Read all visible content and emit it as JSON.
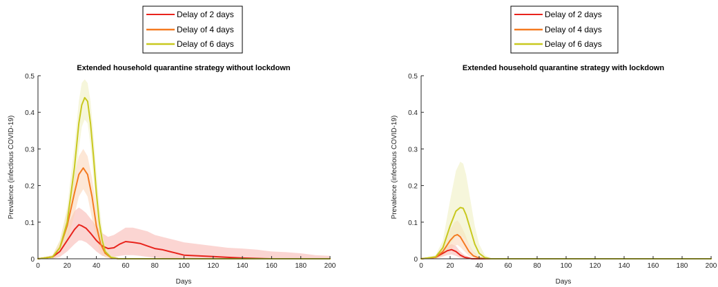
{
  "chart_data": [
    {
      "type": "line",
      "title": "Extended household quarantine strategy without lockdown",
      "xlabel": "Days",
      "ylabel": "Prevalence (infectious COVID-19)",
      "xlim": [
        0,
        200
      ],
      "ylim": [
        0,
        0.5
      ],
      "xticks": [
        "0",
        "20",
        "40",
        "60",
        "80",
        "100",
        "120",
        "140",
        "160",
        "180",
        "200"
      ],
      "yticks": [
        "0",
        "0.1",
        "0.2",
        "0.3",
        "0.4",
        "0.5"
      ],
      "grid": false,
      "legend": {
        "placement": "above-plot",
        "entries": [
          "Delay of 2 days",
          "Delay of 4 days",
          "Delay of 6 days"
        ]
      },
      "series": [
        {
          "name": "Delay of 2 days",
          "color": "#e8231c",
          "band_color": "#f7b3ad",
          "x": [
            0,
            10,
            15,
            20,
            25,
            28,
            30,
            33,
            36,
            40,
            44,
            48,
            52,
            56,
            60,
            65,
            70,
            75,
            80,
            85,
            90,
            95,
            100,
            110,
            120,
            130,
            140,
            150,
            160,
            170,
            180,
            190,
            200
          ],
          "y": [
            0,
            0.005,
            0.02,
            0.05,
            0.08,
            0.093,
            0.09,
            0.083,
            0.07,
            0.05,
            0.035,
            0.028,
            0.03,
            0.04,
            0.047,
            0.045,
            0.042,
            0.035,
            0.028,
            0.025,
            0.02,
            0.015,
            0.01,
            0.008,
            0.006,
            0.004,
            0.002,
            0.001,
            0,
            0,
            0,
            0,
            0
          ],
          "upper": [
            0,
            0.01,
            0.04,
            0.09,
            0.13,
            0.14,
            0.135,
            0.125,
            0.11,
            0.09,
            0.07,
            0.06,
            0.065,
            0.075,
            0.085,
            0.085,
            0.08,
            0.075,
            0.065,
            0.06,
            0.055,
            0.05,
            0.045,
            0.04,
            0.035,
            0.03,
            0.028,
            0.025,
            0.02,
            0.018,
            0.015,
            0.01,
            0.008
          ],
          "lower": [
            0,
            0,
            0.005,
            0.02,
            0.04,
            0.05,
            0.05,
            0.045,
            0.035,
            0.02,
            0.008,
            0.005,
            0.005,
            0.008,
            0.01,
            0.01,
            0.008,
            0.005,
            0.003,
            0.002,
            0.001,
            0,
            0,
            0,
            0,
            0,
            0,
            0,
            0,
            0,
            0,
            0,
            0
          ]
        },
        {
          "name": "Delay of 4 days",
          "color": "#f47a20",
          "band_color": "#fbd4b5",
          "x": [
            0,
            10,
            15,
            20,
            25,
            28,
            31,
            34,
            37,
            40,
            43,
            46,
            50,
            55,
            60,
            200
          ],
          "y": [
            0,
            0.005,
            0.03,
            0.09,
            0.18,
            0.23,
            0.248,
            0.23,
            0.17,
            0.09,
            0.04,
            0.015,
            0.003,
            0,
            0,
            0
          ],
          "upper": [
            0,
            0.01,
            0.05,
            0.13,
            0.23,
            0.28,
            0.3,
            0.28,
            0.22,
            0.14,
            0.07,
            0.03,
            0.01,
            0.002,
            0,
            0
          ],
          "lower": [
            0,
            0,
            0.015,
            0.05,
            0.12,
            0.17,
            0.19,
            0.17,
            0.11,
            0.05,
            0.015,
            0.004,
            0,
            0,
            0,
            0
          ]
        },
        {
          "name": "Delay of 6 days",
          "color": "#c8c81e",
          "band_color": "#efefbd",
          "x": [
            0,
            10,
            15,
            20,
            25,
            28,
            30,
            32,
            34,
            36,
            38,
            40,
            42,
            44,
            46,
            50,
            55,
            60,
            200
          ],
          "y": [
            0,
            0.005,
            0.03,
            0.1,
            0.25,
            0.37,
            0.42,
            0.44,
            0.43,
            0.37,
            0.28,
            0.18,
            0.1,
            0.05,
            0.02,
            0.004,
            0,
            0,
            0
          ],
          "upper": [
            0,
            0.01,
            0.05,
            0.14,
            0.31,
            0.43,
            0.48,
            0.49,
            0.48,
            0.43,
            0.34,
            0.24,
            0.15,
            0.08,
            0.04,
            0.01,
            0.002,
            0,
            0
          ],
          "lower": [
            0,
            0,
            0.015,
            0.06,
            0.19,
            0.3,
            0.36,
            0.38,
            0.37,
            0.31,
            0.22,
            0.13,
            0.06,
            0.025,
            0.008,
            0.001,
            0,
            0,
            0
          ]
        }
      ]
    },
    {
      "type": "line",
      "title": "Extended household quarantine strategy with lockdown",
      "xlabel": "Days",
      "ylabel": "Prevalence (infectious COVID-19)",
      "xlim": [
        0,
        200
      ],
      "ylim": [
        0,
        0.5
      ],
      "xticks": [
        "0",
        "20",
        "40",
        "60",
        "80",
        "100",
        "120",
        "140",
        "160",
        "180",
        "200"
      ],
      "yticks": [
        "0",
        "0.1",
        "0.2",
        "0.3",
        "0.4",
        "0.5"
      ],
      "grid": false,
      "legend": {
        "placement": "above-plot",
        "entries": [
          "Delay of 2 days",
          "Delay of 4 days",
          "Delay of 6 days"
        ]
      },
      "series": [
        {
          "name": "Delay of 2 days",
          "color": "#e8231c",
          "band_color": "#f7b3ad",
          "x": [
            0,
            10,
            15,
            18,
            21,
            24,
            27,
            30,
            35,
            40,
            200
          ],
          "y": [
            0,
            0.004,
            0.015,
            0.022,
            0.025,
            0.02,
            0.01,
            0.004,
            0,
            0,
            0
          ],
          "upper": [
            0,
            0.008,
            0.025,
            0.035,
            0.04,
            0.035,
            0.02,
            0.01,
            0.002,
            0,
            0
          ],
          "lower": [
            0,
            0,
            0.006,
            0.01,
            0.012,
            0.008,
            0.003,
            0,
            0,
            0,
            0
          ]
        },
        {
          "name": "Delay of 4 days",
          "color": "#f47a20",
          "band_color": "#fbd4b5",
          "x": [
            0,
            10,
            15,
            20,
            23,
            25,
            27,
            30,
            33,
            36,
            40,
            45,
            200
          ],
          "y": [
            0,
            0.004,
            0.02,
            0.05,
            0.063,
            0.066,
            0.06,
            0.04,
            0.02,
            0.008,
            0.002,
            0,
            0
          ],
          "upper": [
            0,
            0.008,
            0.035,
            0.08,
            0.1,
            0.105,
            0.095,
            0.07,
            0.04,
            0.02,
            0.006,
            0,
            0
          ],
          "lower": [
            0,
            0,
            0.008,
            0.025,
            0.035,
            0.038,
            0.032,
            0.02,
            0.008,
            0.002,
            0,
            0,
            0
          ]
        },
        {
          "name": "Delay of 6 days",
          "color": "#c8c81e",
          "band_color": "#efefbd",
          "x": [
            0,
            10,
            15,
            20,
            24,
            27,
            29,
            31,
            34,
            37,
            40,
            44,
            48,
            200
          ],
          "y": [
            0,
            0.005,
            0.03,
            0.09,
            0.13,
            0.14,
            0.138,
            0.12,
            0.08,
            0.04,
            0.015,
            0.003,
            0,
            0
          ],
          "upper": [
            0,
            0.01,
            0.05,
            0.16,
            0.24,
            0.265,
            0.26,
            0.23,
            0.16,
            0.09,
            0.04,
            0.01,
            0.002,
            0
          ],
          "lower": [
            0,
            0,
            0.012,
            0.04,
            0.06,
            0.065,
            0.06,
            0.05,
            0.03,
            0.012,
            0.004,
            0,
            0,
            0
          ]
        }
      ]
    }
  ]
}
